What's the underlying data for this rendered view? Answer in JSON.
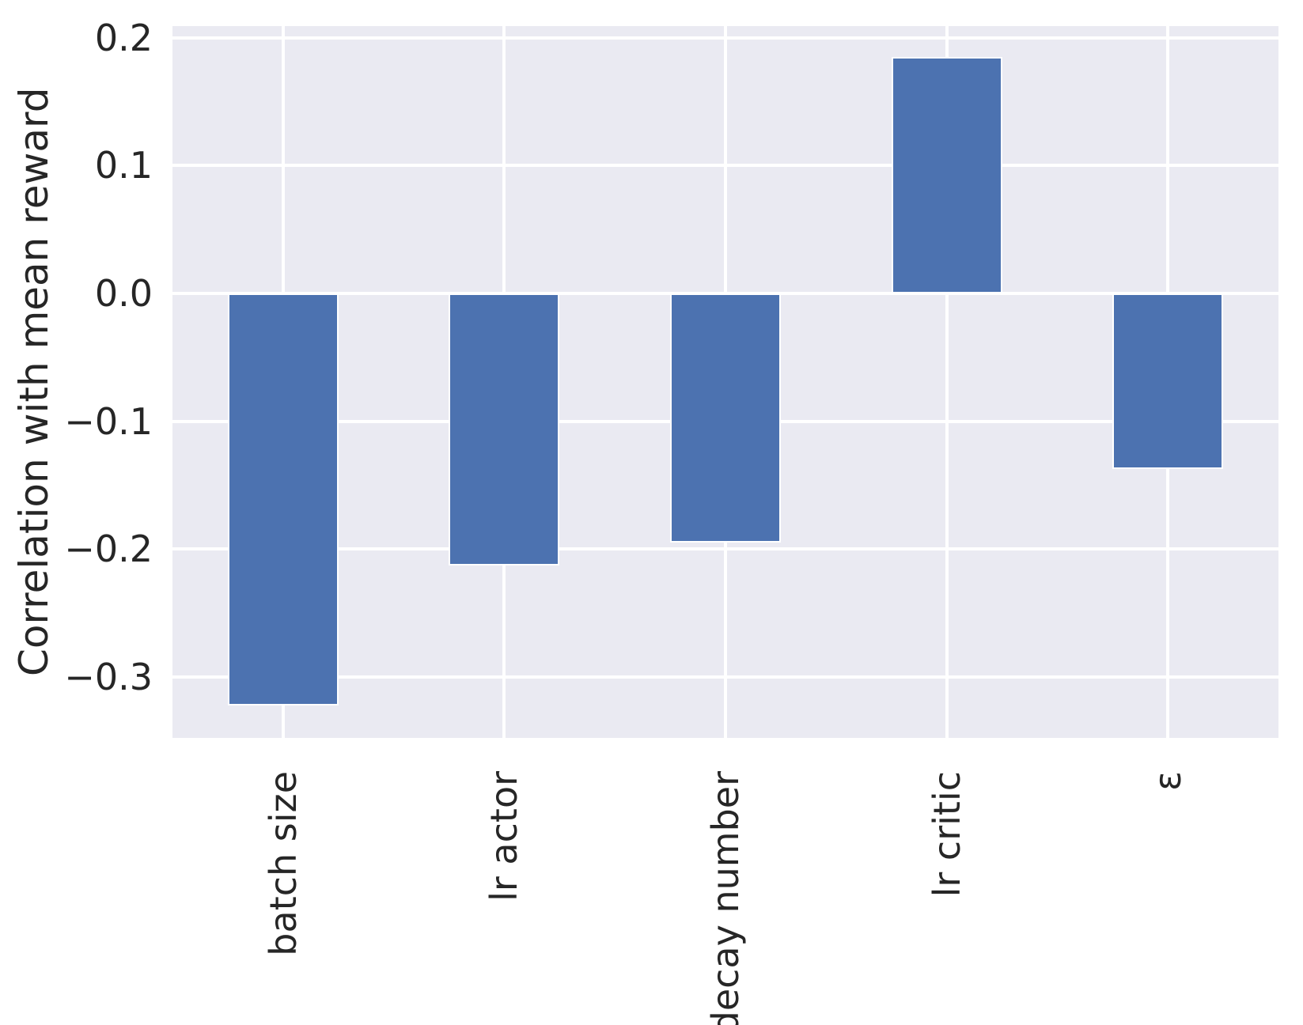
{
  "chart_data": {
    "type": "bar",
    "categories": [
      "batch size",
      "lr actor",
      "decay number",
      "lr critic",
      "ε"
    ],
    "values": [
      -0.322,
      -0.213,
      -0.195,
      0.185,
      -0.137
    ],
    "title": "",
    "xlabel": "",
    "ylabel": "Correlation with mean reward",
    "yticks": [
      0.2,
      0.1,
      0.0,
      -0.1,
      -0.2,
      -0.3
    ],
    "ytick_labels": [
      "0.2",
      "0.1",
      "0.0",
      "−0.1",
      "−0.2",
      "−0.3"
    ],
    "ylim": [
      -0.347,
      0.209
    ],
    "grid": true,
    "legend": false,
    "bar_color": "#4c72b0",
    "bar_edge_color": "#ffffff",
    "plot_bg_color": "#eaeaf2",
    "grid_color": "#ffffff",
    "text_color": "#262626"
  }
}
